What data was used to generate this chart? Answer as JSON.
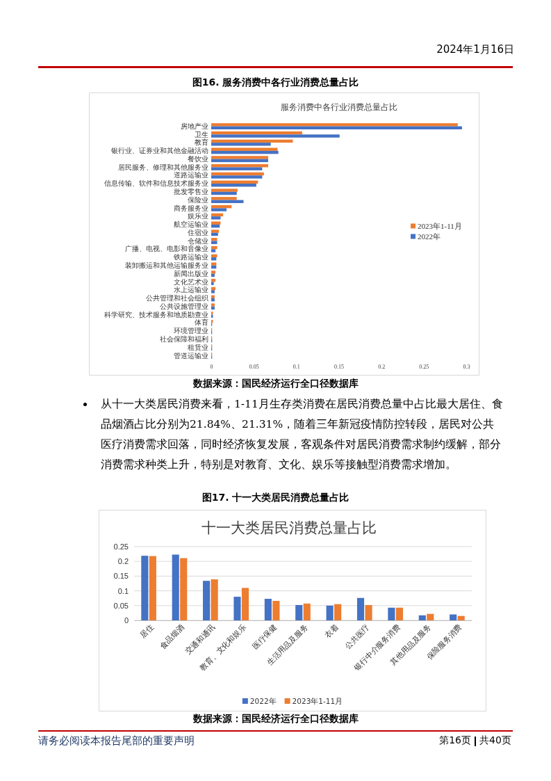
{
  "chart_data": [
    {
      "type": "bar",
      "orientation": "horizontal",
      "title": "图16. 服务消费中各行业消费总量占比",
      "subtitle": "服务消费中各行业消费总量占比",
      "categories": [
        "房地产业",
        "卫生",
        "教育",
        "银行业、证券业和其他金融活动",
        "餐饮业",
        "居民服务、修理和其他服务业",
        "道路运输业",
        "信息传输、软件和信息技术服务业",
        "批发零售业",
        "保险业",
        "商务服务业",
        "娱乐业",
        "航空运输业",
        "住宿业",
        "仓储业",
        "广播、电视、电影和音像业",
        "铁路运输业",
        "装卸搬运和其他运输服务业",
        "新闻出版业",
        "文化艺术业",
        "水上运输业",
        "公共管理和社会组织",
        "公共设施管理业",
        "科学研究、技术服务和地质勘查业",
        "体育",
        "环境管理业",
        "社会保障和福利",
        "租赁业",
        "管道运输业"
      ],
      "series": [
        {
          "name": "2023年1-11月",
          "color": "#ed7d31",
          "values": [
            0.29,
            0.107,
            0.096,
            0.078,
            0.067,
            0.067,
            0.062,
            0.055,
            0.031,
            0.03,
            0.024,
            0.014,
            0.011,
            0.009,
            0.007,
            0.007,
            0.007,
            0.006,
            0.005,
            0.005,
            0.005,
            0.004,
            0.004,
            0.002,
            0.002,
            0.001,
            0.001,
            0.001,
            0.001
          ]
        },
        {
          "name": "2022年",
          "color": "#4472c4",
          "values": [
            0.295,
            0.151,
            0.07,
            0.079,
            0.067,
            0.06,
            0.06,
            0.053,
            0.03,
            0.038,
            0.018,
            0.011,
            0.01,
            0.008,
            0.007,
            0.005,
            0.006,
            0.006,
            0.004,
            0.003,
            0.004,
            0.004,
            0.004,
            0.002,
            0.001,
            0.001,
            0.001,
            0.001,
            0.001
          ]
        }
      ],
      "xlim": [
        0,
        0.3
      ],
      "xticks": [
        0,
        0.05,
        0.1,
        0.15,
        0.2,
        0.25,
        0.3
      ],
      "grid": false,
      "legend": "right",
      "annotations": [
        "2024年1月16日",
        "数据来源：国民经济运行全口径数据库"
      ]
    },
    {
      "type": "bar",
      "title": "图17. 十一大类居民消费总量占比",
      "subtitle": "十一大类居民消费总量占比",
      "categories": [
        "居住",
        "食品烟酒",
        "交通和通讯",
        "教育、文化和娱乐",
        "医疗保健",
        "生活用品及服务",
        "衣着",
        "公共医疗",
        "银行中介服务消费",
        "其他用品及服务",
        "保险服务消费"
      ],
      "series": [
        {
          "name": "2022年",
          "color": "#4472c4",
          "values": [
            0.219,
            0.223,
            0.134,
            0.08,
            0.073,
            0.052,
            0.05,
            0.076,
            0.043,
            0.017,
            0.02
          ]
        },
        {
          "name": "2023年1-11月",
          "color": "#ed7d31",
          "values": [
            0.218,
            0.211,
            0.139,
            0.11,
            0.066,
            0.057,
            0.055,
            0.052,
            0.043,
            0.022,
            0.015
          ]
        }
      ],
      "ylim": [
        0,
        0.25
      ],
      "yticks": [
        0,
        0.05,
        0.1,
        0.15,
        0.2,
        0.25
      ],
      "grid": "y",
      "legend": "bottom",
      "annotations": [
        "从十一大类居民消费来看，1-11月生存类消费在居民消费总量中占比最大居住、食品烟酒占比分别为21.84%、21.31%，随着三年新冠疫情防控转段，居民对公共医疗消费需求回落，同时经济恢复发展，客观条件对居民消费需求制约缓解，部分消费需求种类上升，特别是对教育、文化、娱乐等接触型消费需求增加。",
        "数据来源：国民经济运行全口径数据库",
        "请务必阅读本报告尾部的重要声明",
        "第16页",
        "共40页"
      ]
    }
  ]
}
